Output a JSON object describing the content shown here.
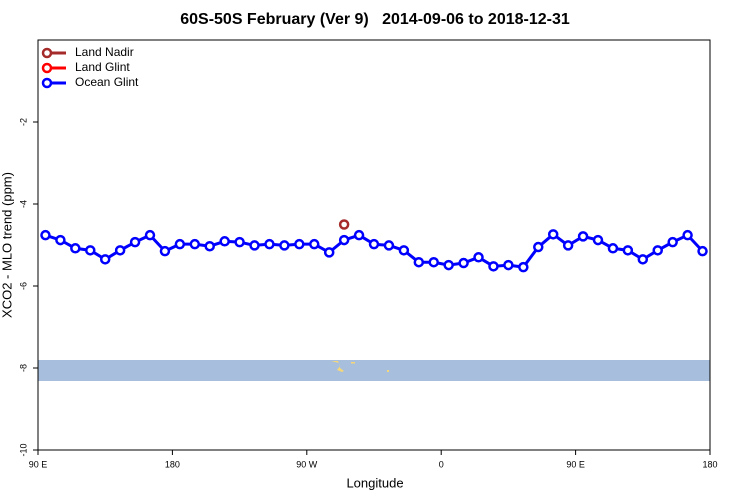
{
  "chart_data": {
    "type": "line",
    "title": "60S-50S February (Ver 9)   2014-09-06 to 2018-12-31",
    "x_label": "Longitude",
    "y_label": "XCO2 - MLO trend (ppm)",
    "xlim": [
      90,
      540
    ],
    "ylim": [
      -10,
      0
    ],
    "xticks": [
      {
        "value": 90,
        "label": "90 E"
      },
      180,
      {
        "value": 270,
        "label": "90 W"
      },
      {
        "value": 360,
        "label": "0"
      },
      {
        "value": 450,
        "label": "90 E"
      },
      {
        "value": 540,
        "label": "180"
      }
    ],
    "yticks": [
      -10,
      -8,
      -6,
      -4,
      -2
    ],
    "legend": "top-left",
    "series": [
      {
        "name": "Land Nadir",
        "color": "#a52a2a",
        "x": [
          295
        ],
        "values": [
          -4.5
        ]
      },
      {
        "name": "Land Glint",
        "color": "#ff0000",
        "x": [],
        "values": []
      },
      {
        "name": "Ocean Glint",
        "color": "#0000ff",
        "x": [
          95,
          105,
          115,
          125,
          135,
          145,
          155,
          165,
          175,
          185,
          195,
          205,
          215,
          225,
          235,
          245,
          255,
          265,
          275,
          285,
          295,
          305,
          315,
          325,
          335,
          345,
          355,
          365,
          375,
          385,
          395,
          405,
          415,
          425,
          435,
          445,
          455,
          465,
          475,
          485,
          495,
          505,
          515,
          525,
          535
        ],
        "values": [
          -4.76,
          -4.88,
          -5.08,
          -5.13,
          -5.35,
          -5.13,
          -4.93,
          -4.76,
          -5.15,
          -4.98,
          -4.98,
          -5.03,
          -4.91,
          -4.93,
          -5.01,
          -4.98,
          -5.01,
          -4.98,
          -4.98,
          -5.18,
          -4.88,
          -4.76,
          -4.98,
          -5.01,
          -5.13,
          -5.42,
          -5.42,
          -5.49,
          -5.44,
          -5.3,
          -5.52,
          -5.49,
          -5.54,
          -5.05,
          -4.74,
          -5.01,
          -4.79,
          -4.88,
          -5.08,
          -5.13,
          -5.35,
          -5.13,
          -4.93,
          -4.76,
          -5.15
        ]
      }
    ]
  }
}
